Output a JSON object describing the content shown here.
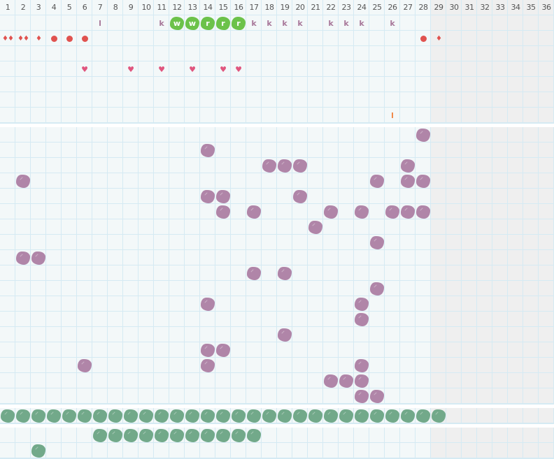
{
  "header": {
    "days": [
      1,
      2,
      3,
      4,
      5,
      6,
      7,
      8,
      9,
      10,
      11,
      12,
      13,
      14,
      15,
      16,
      17,
      18,
      19,
      20,
      21,
      22,
      23,
      24,
      25,
      26,
      27,
      28,
      29,
      30,
      31,
      32,
      33,
      34,
      35,
      36
    ],
    "inactive_from_day": 29
  },
  "colors": {
    "grid_bg": "#f3f8f9",
    "inactive_bg": "#efefef",
    "grid_line": "#d5eaf3",
    "purple_blob": "#b085a8",
    "green_blob": "#72a98a",
    "bright_green": "#6cc24a",
    "letter": "#a8789a",
    "red": "#e0524f",
    "heart": "#e0567e",
    "orange": "#f08a4b"
  },
  "section1": {
    "rows": [
      [
        {
          "day": 7,
          "type": "letter",
          "text": "l"
        },
        {
          "day": 11,
          "type": "letter",
          "text": "k"
        },
        {
          "day": 12,
          "type": "green-badge",
          "text": "w"
        },
        {
          "day": 13,
          "type": "green-badge",
          "text": "w"
        },
        {
          "day": 14,
          "type": "green-badge",
          "text": "r"
        },
        {
          "day": 15,
          "type": "green-badge",
          "text": "r"
        },
        {
          "day": 16,
          "type": "green-badge",
          "text": "r"
        },
        {
          "day": 17,
          "type": "letter",
          "text": "k"
        },
        {
          "day": 18,
          "type": "letter",
          "text": "k"
        },
        {
          "day": 19,
          "type": "letter",
          "text": "k"
        },
        {
          "day": 20,
          "type": "letter",
          "text": "k"
        },
        {
          "day": 22,
          "type": "letter",
          "text": "k"
        },
        {
          "day": 23,
          "type": "letter",
          "text": "k"
        },
        {
          "day": 24,
          "type": "letter",
          "text": "k"
        },
        {
          "day": 26,
          "type": "letter",
          "text": "k"
        }
      ],
      [
        {
          "day": 1,
          "type": "drop",
          "count": 2
        },
        {
          "day": 2,
          "type": "drop",
          "count": 2
        },
        {
          "day": 3,
          "type": "drop",
          "count": 1
        },
        {
          "day": 4,
          "type": "dot"
        },
        {
          "day": 5,
          "type": "dot"
        },
        {
          "day": 6,
          "type": "dot"
        },
        {
          "day": 28,
          "type": "dot"
        },
        {
          "day": 29,
          "type": "drop",
          "count": 1
        }
      ],
      [],
      [
        {
          "day": 6,
          "type": "heart"
        },
        {
          "day": 9,
          "type": "heart"
        },
        {
          "day": 11,
          "type": "heart"
        },
        {
          "day": 13,
          "type": "heart"
        },
        {
          "day": 15,
          "type": "heart"
        },
        {
          "day": 16,
          "type": "heart"
        }
      ],
      [],
      [],
      [
        {
          "day": 26,
          "type": "tick"
        }
      ]
    ]
  },
  "section2": {
    "blob_color": "purple",
    "rows": [
      [
        28
      ],
      [
        14
      ],
      [
        18,
        19,
        20,
        27
      ],
      [
        2,
        25,
        27,
        28
      ],
      [
        14,
        15,
        20
      ],
      [
        15,
        17,
        22,
        24,
        26,
        27,
        28
      ],
      [
        21
      ],
      [
        25
      ],
      [
        2,
        3
      ],
      [
        17,
        19
      ],
      [
        25
      ],
      [
        14,
        24
      ],
      [
        24
      ],
      [
        19
      ],
      [
        14,
        15
      ],
      [
        6,
        14,
        24
      ],
      [
        22,
        23,
        24
      ],
      [
        24,
        25
      ]
    ]
  },
  "section3": {
    "blob_color": "green",
    "rows": [
      [
        1,
        2,
        3,
        4,
        5,
        6,
        7,
        8,
        9,
        10,
        11,
        12,
        13,
        14,
        15,
        16,
        17,
        18,
        19,
        20,
        21,
        22,
        23,
        24,
        25,
        26,
        27,
        28,
        29
      ]
    ]
  },
  "section4": {
    "blob_color": "green",
    "rows": [
      [
        7,
        8,
        9,
        10,
        11,
        12,
        13,
        14,
        15,
        16,
        17
      ],
      [
        3
      ]
    ]
  }
}
